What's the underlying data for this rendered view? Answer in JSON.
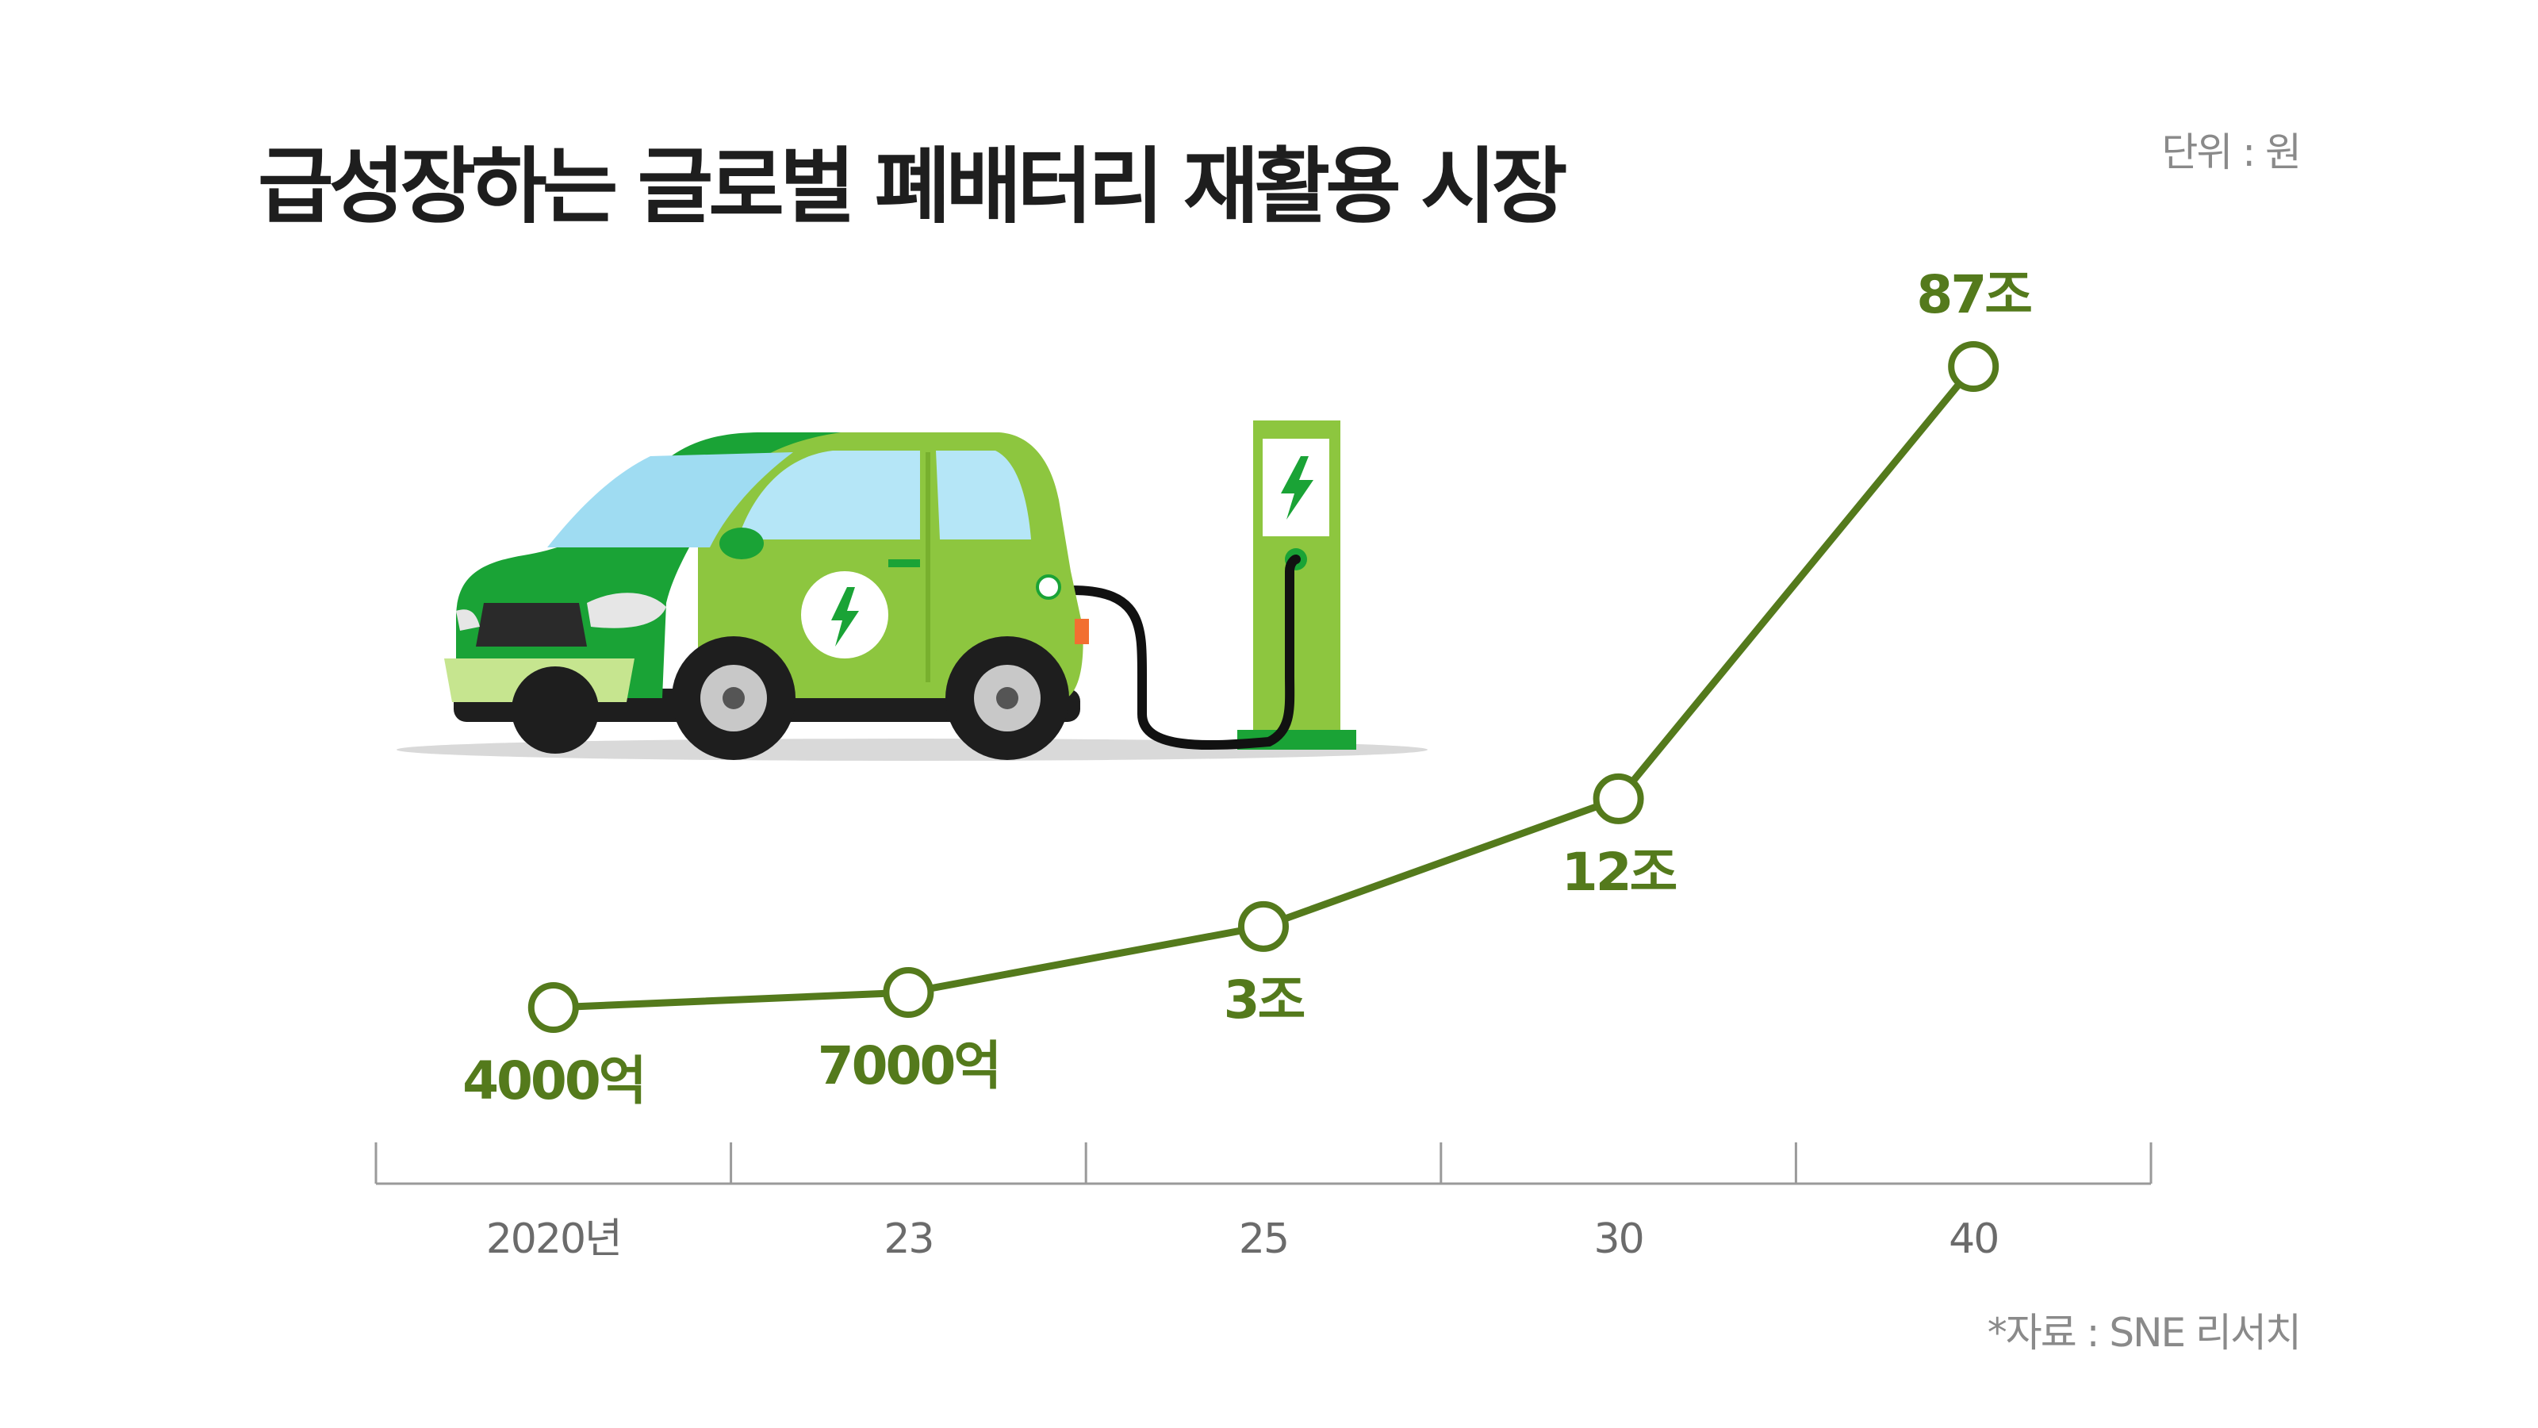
{
  "header": {
    "title": "급성장하는 글로벌 폐배터리 재활용 시장",
    "unit": "단위 : 원"
  },
  "footer": {
    "source": "*자료 : SNE 리서치"
  },
  "illustration": {
    "icon": "electric-car-charging-icon"
  },
  "colors": {
    "line": "#547a1c",
    "axis": "#9a9a9a",
    "car_body": "#8dc63f",
    "car_dark": "#1aa336"
  },
  "chart_data": {
    "type": "line",
    "title": "급성장하는 글로벌 폐배터리 재활용 시장",
    "categories": [
      "2020년",
      "23",
      "25",
      "30",
      "40"
    ],
    "values": [
      0.4,
      0.7,
      3,
      12,
      87
    ],
    "value_labels": [
      "4000억",
      "7000억",
      "3조",
      "12조",
      "87조"
    ],
    "unit": "원",
    "grid": false,
    "legend": "none"
  }
}
